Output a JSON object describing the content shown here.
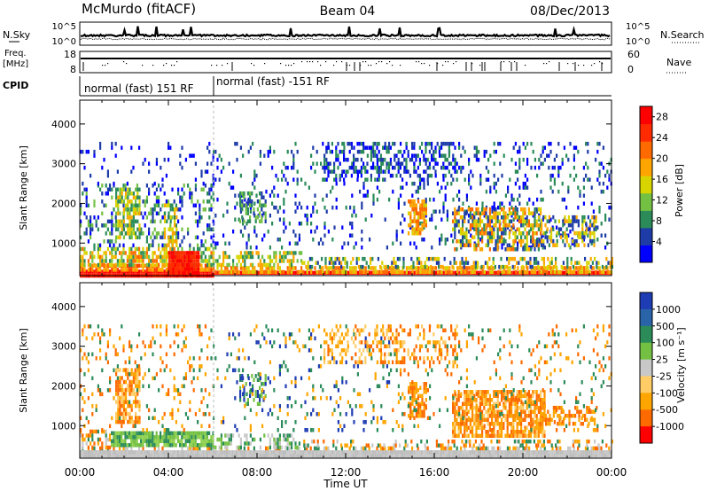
{
  "header": {
    "station": "McMurdo (fitACF)",
    "beam": "Beam 04",
    "date": "08/Dec/2013"
  },
  "top_panels": {
    "nsky_label": "N.Sky",
    "nsearch_label": "N.Search",
    "nsky_ticks": [
      "10^5",
      "10^0"
    ],
    "nsearch_ticks": [
      "10^5",
      "10^0"
    ],
    "freq_label_1": "Freq.",
    "freq_label_2": "[MHz]",
    "freq_ticks": [
      "18",
      "8"
    ],
    "nave_label": "Nave",
    "nave_ticks": [
      "60",
      "0"
    ],
    "cpid_label": "CPID",
    "cpid_segments": [
      {
        "label": "normal (fast) 151 RF",
        "start_hour": 0,
        "end_hour": 6
      },
      {
        "label": "normal (fast) -151 RF",
        "start_hour": 6,
        "end_hour": 24
      }
    ]
  },
  "chart_data": [
    {
      "type": "heatmap",
      "name": "power",
      "ylabel": "Slant Range [km]",
      "yticks": [
        "1000",
        "2000",
        "3000",
        "4000"
      ],
      "ylim": [
        180,
        4600
      ],
      "xlim": [
        0,
        24
      ],
      "colorbar": {
        "label": "Power [dB]",
        "ticks": [
          "4",
          "8",
          "12",
          "16",
          "20",
          "24",
          "28"
        ],
        "range": [
          0,
          30
        ],
        "colors": [
          "#0000ff",
          "#1e3ca8",
          "#2b8c5a",
          "#74c043",
          "#d8d400",
          "#ffa500",
          "#ff6a00",
          "#ff2a00",
          "#ff0000"
        ]
      },
      "scatter_regions": [
        {
          "h0": 0.0,
          "h1": 6.0,
          "r0": 200,
          "r1": 330,
          "d": 1.0,
          "cols": [
            "#ff0000",
            "#ff2000"
          ]
        },
        {
          "h0": 6.0,
          "h1": 24.0,
          "r0": 200,
          "r1": 300,
          "d": 1.0,
          "cols": [
            "#ff0000",
            "#ff2000"
          ]
        },
        {
          "h0": 0.0,
          "h1": 6.0,
          "r0": 330,
          "r1": 480,
          "d": 0.9,
          "cols": [
            "#ff4000",
            "#ff8c00",
            "#ffb000"
          ]
        },
        {
          "h0": 6.0,
          "h1": 24.0,
          "r0": 300,
          "r1": 420,
          "d": 0.7,
          "cols": [
            "#ff6a00",
            "#ffa500",
            "#d8d400"
          ]
        },
        {
          "h0": 0.0,
          "h1": 6.0,
          "r0": 480,
          "r1": 900,
          "d": 0.65,
          "cols": [
            "#ffa500",
            "#d8d400",
            "#2b8c5a",
            "#74c043",
            "#ff6a00"
          ]
        },
        {
          "h0": 4.0,
          "h1": 5.4,
          "r0": 250,
          "r1": 800,
          "d": 1.0,
          "cols": [
            "#ff0000",
            "#ff2a00"
          ]
        },
        {
          "h0": 6.0,
          "h1": 10.0,
          "r0": 420,
          "r1": 800,
          "d": 0.5,
          "cols": [
            "#ffa500",
            "#d8d400",
            "#2b8c5a",
            "#74c043"
          ]
        },
        {
          "h0": 10.0,
          "h1": 24.0,
          "r0": 420,
          "r1": 650,
          "d": 0.45,
          "cols": [
            "#2b8c5a",
            "#d8d400",
            "#ffa500",
            "#1e3ca8"
          ]
        },
        {
          "h0": 0.0,
          "h1": 6.0,
          "r0": 900,
          "r1": 2500,
          "d": 0.25,
          "cols": [
            "#1e3ca8",
            "#2b8c5a",
            "#0000ff",
            "#74c043"
          ]
        },
        {
          "h0": 1.6,
          "h1": 2.7,
          "r0": 1100,
          "r1": 2400,
          "d": 0.65,
          "cols": [
            "#d8d400",
            "#2b8c5a",
            "#ffa500",
            "#74c043"
          ]
        },
        {
          "h0": 3.8,
          "h1": 4.4,
          "r0": 900,
          "r1": 2000,
          "d": 0.55,
          "cols": [
            "#ffa500",
            "#d8d400",
            "#2b8c5a"
          ]
        },
        {
          "h0": 0.0,
          "h1": 6.0,
          "r0": 2500,
          "r1": 3550,
          "d": 0.1,
          "cols": [
            "#1e3ca8",
            "#0000ff"
          ]
        },
        {
          "h0": 6.0,
          "h1": 14.0,
          "r0": 900,
          "r1": 3550,
          "d": 0.12,
          "cols": [
            "#1e3ca8",
            "#0000ff",
            "#2b8c5a"
          ]
        },
        {
          "h0": 7.2,
          "h1": 8.4,
          "r0": 1500,
          "r1": 2300,
          "d": 0.45,
          "cols": [
            "#2b8c5a",
            "#74c043",
            "#1e3ca8"
          ]
        },
        {
          "h0": 11.0,
          "h1": 17.0,
          "r0": 2600,
          "r1": 3550,
          "d": 0.35,
          "cols": [
            "#1e3ca8",
            "#2b8c5a",
            "#0000ff"
          ]
        },
        {
          "h0": 14.0,
          "h1": 24.0,
          "r0": 900,
          "r1": 3550,
          "d": 0.15,
          "cols": [
            "#1e3ca8",
            "#0000ff",
            "#2b8c5a"
          ]
        },
        {
          "h0": 14.8,
          "h1": 15.6,
          "r0": 1200,
          "r1": 2100,
          "d": 0.7,
          "cols": [
            "#ff6a00",
            "#ffa500",
            "#d8d400"
          ]
        },
        {
          "h0": 16.8,
          "h1": 20.8,
          "r0": 800,
          "r1": 1900,
          "d": 0.6,
          "cols": [
            "#2b8c5a",
            "#ffa500",
            "#d8d400",
            "#1e3ca8",
            "#ff6a00"
          ]
        },
        {
          "h0": 20.8,
          "h1": 23.3,
          "r0": 900,
          "r1": 1700,
          "d": 0.45,
          "cols": [
            "#1e3ca8",
            "#2b8c5a",
            "#ffa500",
            "#d8d400"
          ]
        }
      ]
    },
    {
      "type": "heatmap",
      "name": "velocity",
      "ylabel": "Slant Range [km]",
      "xlabel": "Time UT",
      "xticks": [
        "00:00",
        "04:00",
        "08:00",
        "12:00",
        "16:00",
        "20:00",
        "00:00"
      ],
      "yticks": [
        "1000",
        "2000",
        "3000",
        "4000"
      ],
      "ylim": [
        180,
        4600
      ],
      "xlim": [
        0,
        24
      ],
      "colorbar": {
        "label": "Velocity [m s⁻¹]",
        "ticks": [
          "1000",
          "500",
          "100",
          "25",
          "-25",
          "-100",
          "-500",
          "-1000"
        ],
        "colors": [
          "#1e3cb4",
          "#2a64a8",
          "#2b8c5a",
          "#74c043",
          "#c8c8c8",
          "#ffcc66",
          "#ffa500",
          "#ff6a00",
          "#ff0000"
        ]
      },
      "ground_scatter_color": "#c8c8c8",
      "scatter_regions": [
        {
          "h0": 0.0,
          "h1": 24.0,
          "r0": 200,
          "r1": 380,
          "d": 1.0,
          "cols": [
            "#c8c8c8",
            "#bdbdbd"
          ]
        },
        {
          "h0": 0.0,
          "h1": 24.0,
          "r0": 380,
          "r1": 480,
          "d": 0.5,
          "cols": [
            "#c8c8c8",
            "#ffa500",
            "#2b8c5a",
            "#ff6a00"
          ]
        },
        {
          "h0": 1.4,
          "h1": 6.0,
          "r0": 480,
          "r1": 860,
          "d": 0.9,
          "cols": [
            "#74c043",
            "#2b8c5a",
            "#8fd14f"
          ]
        },
        {
          "h0": 0.0,
          "h1": 1.4,
          "r0": 480,
          "r1": 900,
          "d": 0.45,
          "cols": [
            "#ffa500",
            "#2b8c5a",
            "#ff6a00",
            "#c8c8c8"
          ]
        },
        {
          "h0": 6.0,
          "h1": 10.0,
          "r0": 480,
          "r1": 800,
          "d": 0.5,
          "cols": [
            "#2b8c5a",
            "#74c043",
            "#c8c8c8"
          ]
        },
        {
          "h0": 10.0,
          "h1": 24.0,
          "r0": 480,
          "r1": 650,
          "d": 0.35,
          "cols": [
            "#ffa500",
            "#2b8c5a",
            "#c8c8c8",
            "#ff6a00"
          ]
        },
        {
          "h0": 1.6,
          "h1": 2.7,
          "r0": 1100,
          "r1": 2450,
          "d": 0.65,
          "cols": [
            "#ffa500",
            "#ff6a00",
            "#ffcc66"
          ]
        },
        {
          "h0": 0.0,
          "h1": 6.0,
          "r0": 900,
          "r1": 3550,
          "d": 0.12,
          "cols": [
            "#ffa500",
            "#ff6a00",
            "#2b8c5a"
          ]
        },
        {
          "h0": 7.2,
          "h1": 8.4,
          "r0": 1500,
          "r1": 2300,
          "d": 0.45,
          "cols": [
            "#2b8c5a",
            "#74c043",
            "#1e3cb4"
          ]
        },
        {
          "h0": 6.0,
          "h1": 14.0,
          "r0": 900,
          "r1": 3550,
          "d": 0.1,
          "cols": [
            "#ffa500",
            "#2b8c5a",
            "#1e3cb4"
          ]
        },
        {
          "h0": 11.0,
          "h1": 17.0,
          "r0": 2600,
          "r1": 3550,
          "d": 0.3,
          "cols": [
            "#ffa500",
            "#ffcc66",
            "#ff6a00"
          ]
        },
        {
          "h0": 14.8,
          "h1": 15.6,
          "r0": 1200,
          "r1": 2100,
          "d": 0.7,
          "cols": [
            "#ff6a00",
            "#ffa500"
          ]
        },
        {
          "h0": 16.8,
          "h1": 21.0,
          "r0": 700,
          "r1": 1900,
          "d": 0.75,
          "cols": [
            "#ff6a00",
            "#ffa500",
            "#ffcc66",
            "#ff8c00"
          ]
        },
        {
          "h0": 21.0,
          "h1": 23.3,
          "r0": 1000,
          "r1": 1500,
          "d": 0.55,
          "cols": [
            "#ffa500",
            "#ff6a00"
          ]
        },
        {
          "h0": 14.0,
          "h1": 24.0,
          "r0": 900,
          "r1": 3550,
          "d": 0.1,
          "cols": [
            "#ffa500",
            "#2b8c5a",
            "#ff6a00"
          ]
        }
      ]
    }
  ]
}
